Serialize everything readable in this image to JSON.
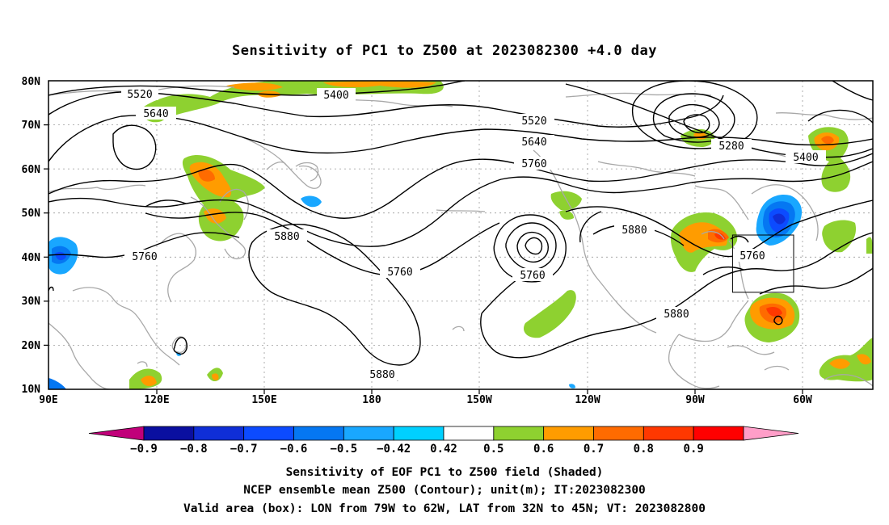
{
  "title": "Sensitivity of PC1 to Z500 at 2023082300 +4.0 day",
  "lat_labels": [
    "80N",
    "70N",
    "60N",
    "50N",
    "40N",
    "30N",
    "20N",
    "10N"
  ],
  "lon_labels": [
    "90E",
    "120E",
    "150E",
    "180",
    "150W",
    "120W",
    "90W",
    "60W"
  ],
  "colorbar": {
    "labels": [
      "-0.9",
      "-0.8",
      "-0.7",
      "-0.6",
      "-0.5",
      "-0.42",
      "0.42",
      "0.5",
      "0.6",
      "0.7",
      "0.8",
      "0.9"
    ],
    "colors": [
      "#c1007a",
      "#0a0fa0",
      "#0f2ed7",
      "#0c4bff",
      "#0577f2",
      "#19a7ff",
      "#00d0ff",
      "#ffffff",
      "#8ed130",
      "#ff9c00",
      "#ff6b00",
      "#ff3800",
      "#ff0000",
      "#ff9ec8"
    ]
  },
  "contour_labels": {
    "c5520a": "5520",
    "c5640a": "5640",
    "c5400a": "5400",
    "c5520b": "5520",
    "c5640b": "5640",
    "c5760a": "5760",
    "c5280": "5280",
    "c5400b": "5400",
    "c5880a": "5880",
    "c5760b": "5760",
    "c5760c": "5760",
    "c5760d": "5760",
    "c5880b": "5880",
    "c5760e": "5760",
    "c5880c": "5880",
    "c5880d": "5880"
  },
  "valid_box": {
    "lon_min": -79,
    "lon_max": -62,
    "lat_min": 32,
    "lat_max": 45
  },
  "captions": {
    "line1": "Sensitivity of EOF PC1 to Z500 field (Shaded)",
    "line2": "NCEP ensemble mean Z500 (Contour); unit(m); IT:2023082300",
    "line3": "Valid area (box): LON from 79W to 62W, LAT from 32N to 45N; VT: 2023082800"
  }
}
